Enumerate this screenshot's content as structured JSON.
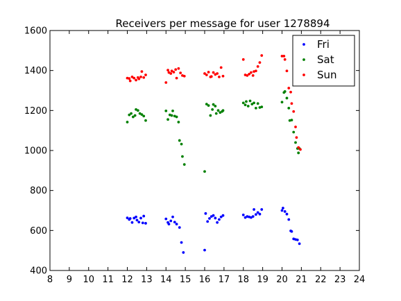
{
  "chart_data": {
    "type": "scatter",
    "title": "Receivers per message for user 1278894",
    "xlabel": "",
    "ylabel": "",
    "xlim": [
      8,
      24
    ],
    "ylim": [
      400,
      1600
    ],
    "xticks": [
      8,
      9,
      10,
      11,
      12,
      13,
      14,
      15,
      16,
      17,
      18,
      19,
      20,
      21,
      22,
      23,
      24
    ],
    "yticks": [
      400,
      600,
      800,
      1000,
      1200,
      1400,
      1600
    ],
    "grid": false,
    "legend_position": "top-right",
    "series": [
      {
        "name": "Fri",
        "color": "#0000ff",
        "points": [
          [
            12.0,
            663
          ],
          [
            12.1,
            655
          ],
          [
            12.15,
            660
          ],
          [
            12.25,
            640
          ],
          [
            12.35,
            662
          ],
          [
            12.45,
            668
          ],
          [
            12.5,
            652
          ],
          [
            12.6,
            642
          ],
          [
            12.7,
            662
          ],
          [
            12.8,
            638
          ],
          [
            12.85,
            672
          ],
          [
            12.95,
            636
          ],
          [
            14.0,
            658
          ],
          [
            14.1,
            640
          ],
          [
            14.15,
            632
          ],
          [
            14.25,
            648
          ],
          [
            14.35,
            668
          ],
          [
            14.45,
            642
          ],
          [
            14.55,
            632
          ],
          [
            14.7,
            615
          ],
          [
            14.8,
            540
          ],
          [
            14.9,
            490
          ],
          [
            16.0,
            502
          ],
          [
            16.05,
            685
          ],
          [
            16.15,
            645
          ],
          [
            16.25,
            660
          ],
          [
            16.35,
            670
          ],
          [
            16.45,
            675
          ],
          [
            16.55,
            662
          ],
          [
            16.65,
            640
          ],
          [
            16.75,
            655
          ],
          [
            16.85,
            668
          ],
          [
            16.95,
            675
          ],
          [
            18.0,
            678
          ],
          [
            18.1,
            665
          ],
          [
            18.2,
            670
          ],
          [
            18.3,
            668
          ],
          [
            18.4,
            665
          ],
          [
            18.5,
            670
          ],
          [
            18.55,
            705
          ],
          [
            18.65,
            680
          ],
          [
            18.75,
            690
          ],
          [
            18.85,
            682
          ],
          [
            18.95,
            705
          ],
          [
            20.0,
            700
          ],
          [
            20.05,
            712
          ],
          [
            20.15,
            695
          ],
          [
            20.25,
            682
          ],
          [
            20.35,
            655
          ],
          [
            20.45,
            598
          ],
          [
            20.5,
            595
          ],
          [
            20.6,
            558
          ],
          [
            20.7,
            555
          ],
          [
            20.8,
            553
          ],
          [
            20.9,
            534
          ]
        ]
      },
      {
        "name": "Sat",
        "color": "#008000",
        "points": [
          [
            12.0,
            1142
          ],
          [
            12.1,
            1178
          ],
          [
            12.2,
            1185
          ],
          [
            12.3,
            1168
          ],
          [
            12.4,
            1175
          ],
          [
            12.45,
            1205
          ],
          [
            12.55,
            1200
          ],
          [
            12.65,
            1185
          ],
          [
            12.75,
            1180
          ],
          [
            12.85,
            1172
          ],
          [
            12.95,
            1150
          ],
          [
            14.0,
            1198
          ],
          [
            14.1,
            1155
          ],
          [
            14.2,
            1178
          ],
          [
            14.3,
            1175
          ],
          [
            14.35,
            1198
          ],
          [
            14.45,
            1172
          ],
          [
            14.55,
            1168
          ],
          [
            14.65,
            1142
          ],
          [
            14.7,
            1050
          ],
          [
            14.8,
            1032
          ],
          [
            14.85,
            970
          ],
          [
            14.95,
            930
          ],
          [
            16.0,
            895
          ],
          [
            16.1,
            1232
          ],
          [
            16.2,
            1225
          ],
          [
            16.3,
            1175
          ],
          [
            16.4,
            1205
          ],
          [
            16.45,
            1230
          ],
          [
            16.55,
            1222
          ],
          [
            16.6,
            1185
          ],
          [
            16.7,
            1200
          ],
          [
            16.8,
            1190
          ],
          [
            16.9,
            1195
          ],
          [
            16.95,
            1200
          ],
          [
            18.0,
            1238
          ],
          [
            18.1,
            1228
          ],
          [
            18.15,
            1245
          ],
          [
            18.25,
            1222
          ],
          [
            18.35,
            1248
          ],
          [
            18.45,
            1232
          ],
          [
            18.55,
            1238
          ],
          [
            18.65,
            1212
          ],
          [
            18.75,
            1235
          ],
          [
            18.85,
            1215
          ],
          [
            18.95,
            1218
          ],
          [
            20.0,
            1242
          ],
          [
            20.1,
            1290
          ],
          [
            20.15,
            1295
          ],
          [
            20.25,
            1262
          ],
          [
            20.35,
            1212
          ],
          [
            20.4,
            1150
          ],
          [
            20.5,
            1152
          ],
          [
            20.6,
            1092
          ],
          [
            20.7,
            1040
          ],
          [
            20.8,
            1010
          ],
          [
            20.85,
            988
          ],
          [
            20.9,
            1010
          ]
        ]
      },
      {
        "name": "Sun",
        "color": "#ff0000",
        "points": [
          [
            12.0,
            1362
          ],
          [
            12.1,
            1360
          ],
          [
            12.15,
            1348
          ],
          [
            12.25,
            1368
          ],
          [
            12.35,
            1362
          ],
          [
            12.45,
            1352
          ],
          [
            12.55,
            1365
          ],
          [
            12.6,
            1358
          ],
          [
            12.7,
            1368
          ],
          [
            12.75,
            1395
          ],
          [
            12.85,
            1365
          ],
          [
            12.95,
            1378
          ],
          [
            14.0,
            1340
          ],
          [
            14.1,
            1402
          ],
          [
            14.15,
            1390
          ],
          [
            14.25,
            1385
          ],
          [
            14.3,
            1398
          ],
          [
            14.4,
            1392
          ],
          [
            14.5,
            1405
          ],
          [
            14.55,
            1362
          ],
          [
            14.65,
            1410
          ],
          [
            14.75,
            1388
          ],
          [
            14.85,
            1375
          ],
          [
            14.95,
            1372
          ],
          [
            16.0,
            1385
          ],
          [
            16.1,
            1378
          ],
          [
            16.2,
            1392
          ],
          [
            16.3,
            1368
          ],
          [
            16.35,
            1370
          ],
          [
            16.45,
            1390
          ],
          [
            16.55,
            1380
          ],
          [
            16.65,
            1385
          ],
          [
            16.75,
            1368
          ],
          [
            16.85,
            1415
          ],
          [
            16.95,
            1372
          ],
          [
            18.0,
            1455
          ],
          [
            18.1,
            1378
          ],
          [
            18.2,
            1375
          ],
          [
            18.3,
            1382
          ],
          [
            18.4,
            1390
          ],
          [
            18.5,
            1375
          ],
          [
            18.55,
            1395
          ],
          [
            18.65,
            1398
          ],
          [
            18.75,
            1420
          ],
          [
            18.85,
            1440
          ],
          [
            18.95,
            1475
          ],
          [
            20.0,
            1472
          ],
          [
            20.1,
            1472
          ],
          [
            20.15,
            1455
          ],
          [
            20.25,
            1398
          ],
          [
            20.35,
            1312
          ],
          [
            20.45,
            1292
          ],
          [
            20.5,
            1235
          ],
          [
            20.6,
            1195
          ],
          [
            20.7,
            1118
          ],
          [
            20.75,
            1065
          ],
          [
            20.85,
            1015
          ],
          [
            20.95,
            1005
          ]
        ]
      }
    ]
  }
}
